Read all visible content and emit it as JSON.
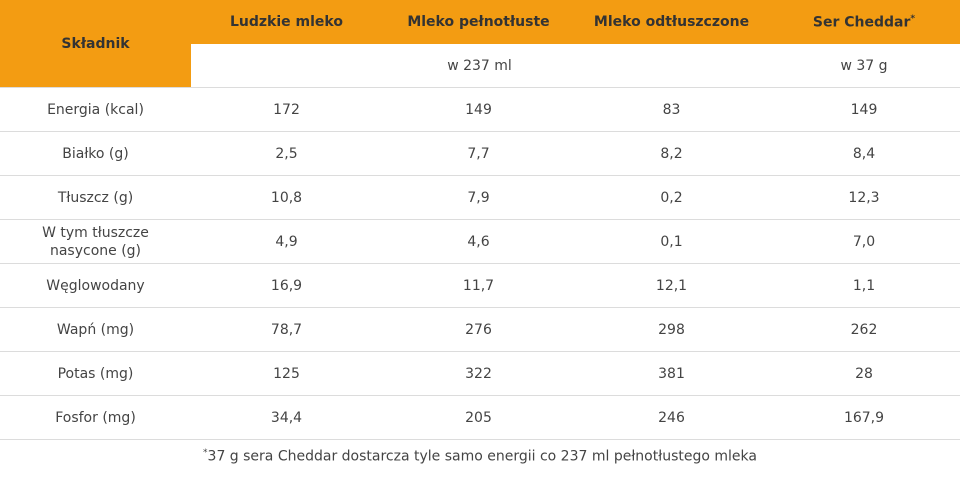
{
  "headers": {
    "ingredient": "Składnik",
    "col1": "Ludzkie mleko",
    "col2": "Mleko pełnotłuste",
    "col3": "Mleko odtłuszczone",
    "col4": "Ser Cheddar",
    "col4_mark": "*"
  },
  "units": {
    "milk": "w 237 ml",
    "cheese": "w 37 g"
  },
  "rows": [
    {
      "label": "Energia (kcal)",
      "v1": "172",
      "v2": "149",
      "v3": "83",
      "v4": "149"
    },
    {
      "label": "Białko (g)",
      "v1": "2,5",
      "v2": "7,7",
      "v3": "8,2",
      "v4": "8,4"
    },
    {
      "label": "Tłuszcz (g)",
      "v1": "10,8",
      "v2": "7,9",
      "v3": "0,2",
      "v4": "12,3"
    },
    {
      "label_line1": "W tym tłuszcze",
      "label_line2": "nasycone (g)",
      "v1": "4,9",
      "v2": "4,6",
      "v3": "0,1",
      "v4": "7,0"
    },
    {
      "label": "Węglowodany",
      "v1": "16,9",
      "v2": "11,7",
      "v3": "12,1",
      "v4": "1,1"
    },
    {
      "label": "Wapń (mg)",
      "v1": "78,7",
      "v2": "276",
      "v3": "298",
      "v4": "262"
    },
    {
      "label": "Potas (mg)",
      "v1": "125",
      "v2": "322",
      "v3": "381",
      "v4": "28"
    },
    {
      "label": "Fosfor (mg)",
      "v1": "34,4",
      "v2": "205",
      "v3": "246",
      "v4": "167,9"
    }
  ],
  "footnote": {
    "mark": "*",
    "text": "37 g sera Cheddar dostarcza tyle samo energii co 237 ml pełnotłustego mleka"
  },
  "colors": {
    "header_bg": "#F39C12",
    "border": "#dcdcdc"
  }
}
